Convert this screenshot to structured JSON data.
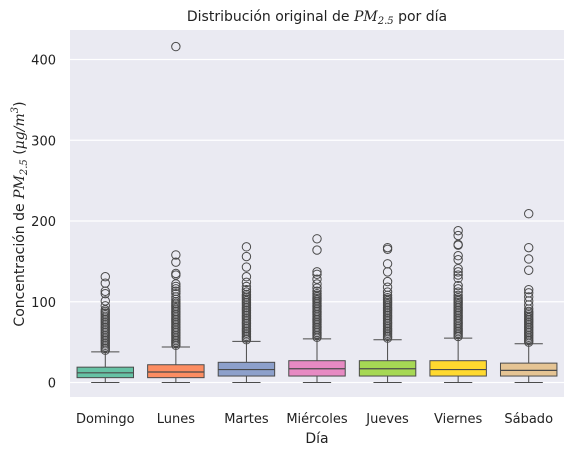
{
  "chart_data": {
    "type": "box",
    "title": {
      "prefix": "Distribución original de ",
      "math": "PM",
      "sub": "2.5",
      "suffix": " por día"
    },
    "xlabel": "Día",
    "ylabel": {
      "prefix": "Concentración de ",
      "math": "PM",
      "sub": "2.5",
      "unit_open": " (",
      "unit_mu": "μg/m",
      "unit_sup": "3",
      "unit_close": ")"
    },
    "ylim": [
      -20,
      440
    ],
    "yticks": [
      0,
      100,
      200,
      300,
      400
    ],
    "grid": true,
    "categories": [
      "Domingo",
      "Lunes",
      "Martes",
      "Miércoles",
      "Jueves",
      "Viernes",
      "Sábado"
    ],
    "colors": [
      "#66c2a5",
      "#fc8d62",
      "#8da0cb",
      "#e78ac3",
      "#a6d854",
      "#ffd92f",
      "#e5c494"
    ],
    "series": [
      {
        "q1": 6,
        "median": 12,
        "q3": 19,
        "whisker_low": 0,
        "whisker_high": 38,
        "fliers": [
          40,
          42,
          44,
          46,
          48,
          50,
          52,
          54,
          56,
          58,
          60,
          62,
          64,
          66,
          68,
          70,
          72,
          74,
          76,
          78,
          80,
          82,
          84,
          86,
          88,
          90,
          95,
          101,
          110,
          113,
          123,
          131
        ]
      },
      {
        "q1": 6,
        "median": 13,
        "q3": 22,
        "whisker_low": 0,
        "whisker_high": 44,
        "fliers": [
          46,
          48,
          50,
          52,
          54,
          56,
          58,
          60,
          62,
          64,
          66,
          68,
          70,
          72,
          74,
          76,
          78,
          80,
          82,
          84,
          86,
          88,
          90,
          92,
          94,
          96,
          98,
          100,
          103,
          106,
          110,
          113,
          116,
          119,
          122,
          133,
          135,
          149,
          158,
          416
        ]
      },
      {
        "q1": 8,
        "median": 16,
        "q3": 25,
        "whisker_low": 0,
        "whisker_high": 51,
        "fliers": [
          53,
          55,
          57,
          59,
          61,
          63,
          65,
          67,
          69,
          71,
          73,
          75,
          77,
          79,
          81,
          83,
          85,
          87,
          89,
          91,
          93,
          95,
          97,
          99,
          101,
          103,
          105,
          107,
          109,
          112,
          115,
          119,
          124,
          131,
          143,
          156,
          168
        ]
      },
      {
        "q1": 8,
        "median": 17,
        "q3": 27,
        "whisker_low": 0,
        "whisker_high": 54,
        "fliers": [
          56,
          58,
          60,
          62,
          64,
          66,
          68,
          70,
          72,
          74,
          76,
          78,
          80,
          82,
          84,
          86,
          88,
          90,
          92,
          94,
          96,
          98,
          100,
          102,
          104,
          106,
          108,
          110,
          113,
          117,
          122,
          128,
          134,
          137,
          164,
          178
        ]
      },
      {
        "q1": 8,
        "median": 17,
        "q3": 27,
        "whisker_low": 0,
        "whisker_high": 53,
        "fliers": [
          55,
          57,
          59,
          61,
          63,
          65,
          67,
          69,
          71,
          73,
          75,
          77,
          79,
          81,
          83,
          85,
          87,
          89,
          91,
          93,
          95,
          97,
          99,
          101,
          103,
          105,
          108,
          112,
          118,
          125,
          137,
          147,
          165,
          167
        ]
      },
      {
        "q1": 8,
        "median": 16,
        "q3": 27,
        "whisker_low": 0,
        "whisker_high": 55,
        "fliers": [
          57,
          59,
          61,
          63,
          65,
          67,
          69,
          71,
          73,
          75,
          77,
          79,
          81,
          83,
          85,
          87,
          89,
          91,
          93,
          95,
          97,
          99,
          101,
          103,
          105,
          108,
          112,
          116,
          120,
          129,
          133,
          137,
          141,
          152,
          157,
          170,
          171,
          182,
          188
        ]
      },
      {
        "q1": 8,
        "median": 15,
        "q3": 24,
        "whisker_low": 0,
        "whisker_high": 48,
        "fliers": [
          50,
          52,
          54,
          56,
          58,
          60,
          62,
          64,
          66,
          68,
          70,
          72,
          74,
          76,
          78,
          80,
          82,
          84,
          86,
          88,
          91,
          96,
          101,
          106,
          111,
          115,
          139,
          153,
          167,
          209
        ]
      }
    ]
  }
}
